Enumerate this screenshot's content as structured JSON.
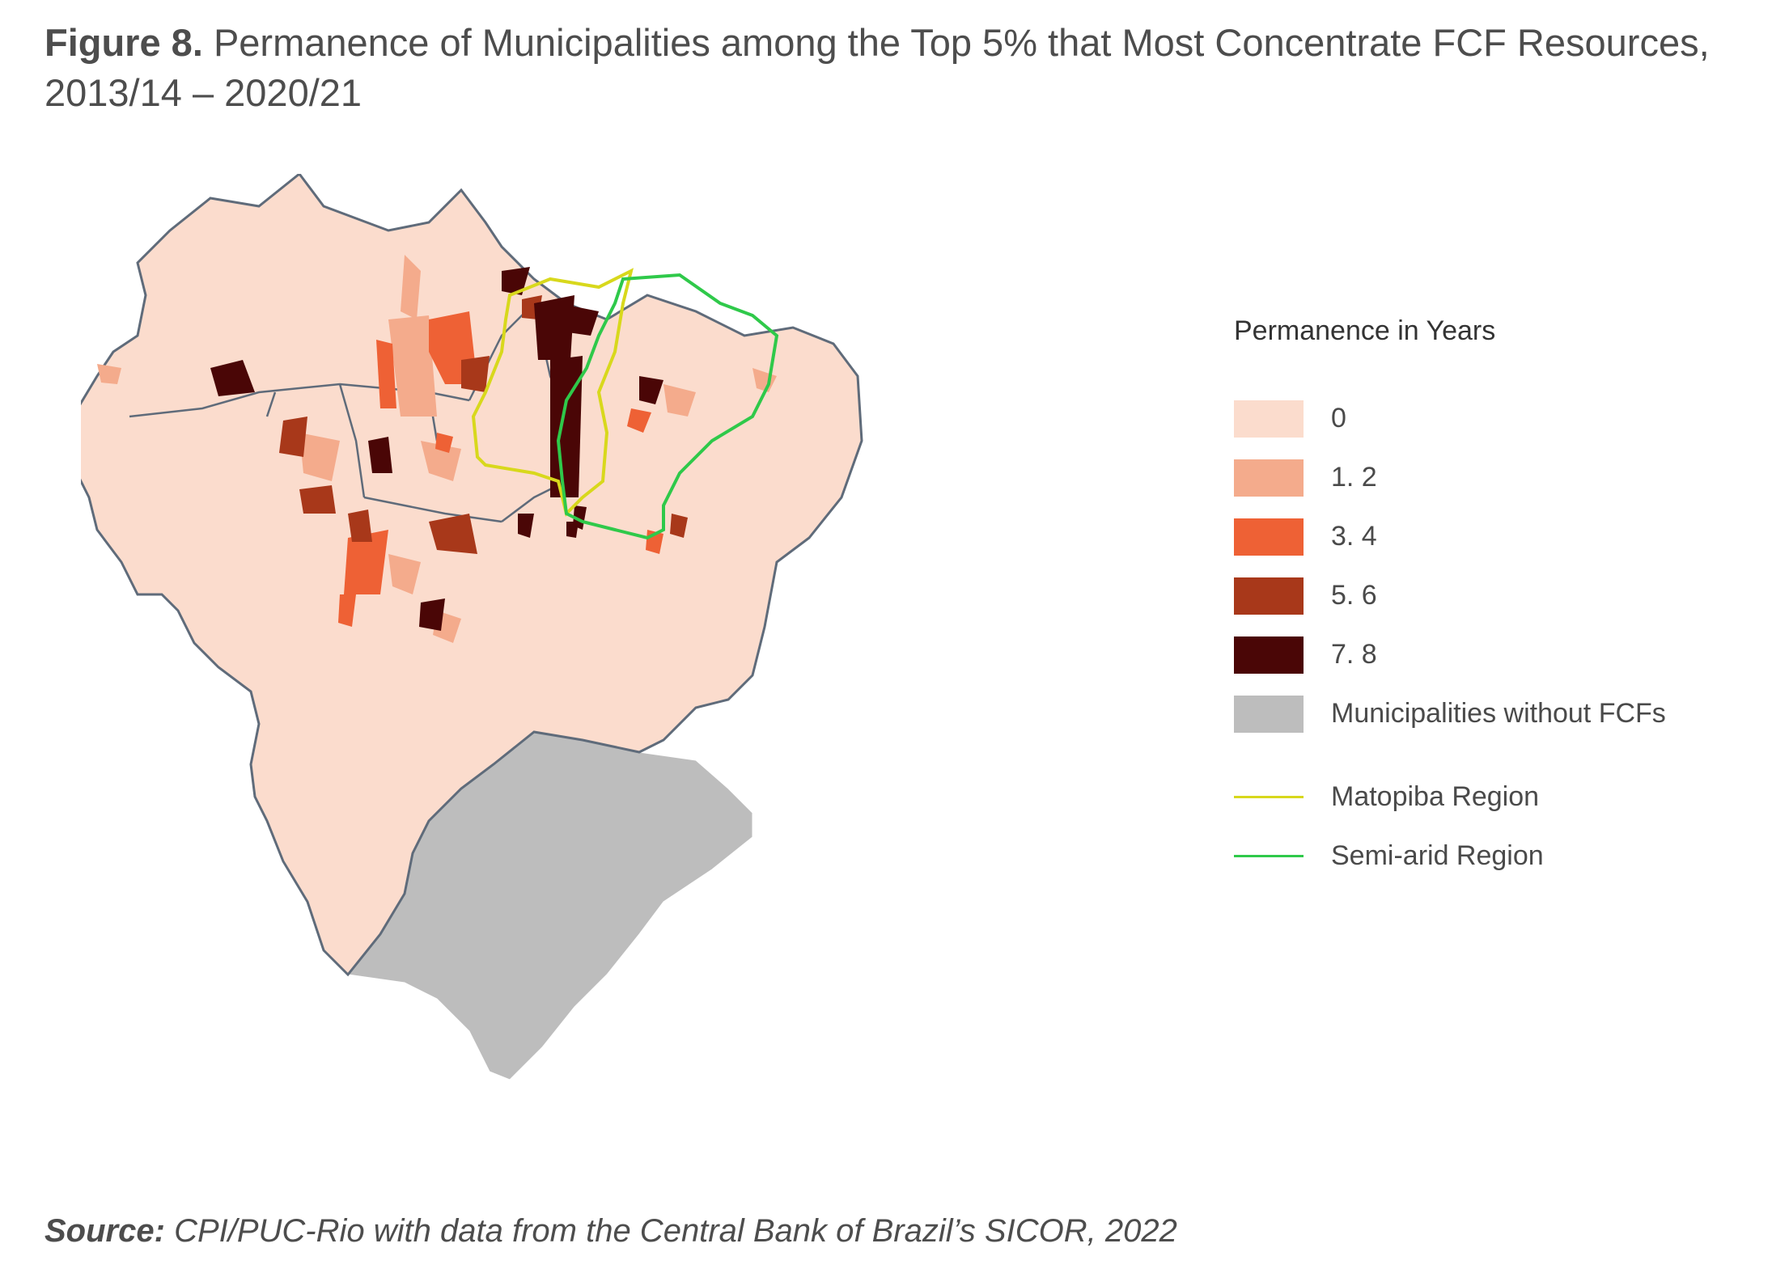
{
  "title": {
    "label": "Figure 8.",
    "text": "Permanence of Municipalities among the Top 5% that Most Concentrate FCF Resources, 2013/14 – 2020/21"
  },
  "legend": {
    "title": "Permanence in Years",
    "items": [
      {
        "label": "0",
        "color": "#fbdccd"
      },
      {
        "label": "1. 2",
        "color": "#f4ab8c"
      },
      {
        "label": "3. 4",
        "color": "#ee6135"
      },
      {
        "label": "5. 6",
        "color": "#a8381a"
      },
      {
        "label": "7. 8",
        "color": "#4a0606"
      },
      {
        "label": "Municipalities without FCFs",
        "color": "#bdbdbd"
      }
    ],
    "lines": [
      {
        "label": "Matopiba Region",
        "color": "#d8d81c"
      },
      {
        "label": "Semi-arid Region",
        "color": "#2fc94a"
      }
    ]
  },
  "source": {
    "label": "Source:",
    "text": "CPI/PUC-Rio with data from the Central Bank of Brazil’s SICOR, 2022"
  }
}
